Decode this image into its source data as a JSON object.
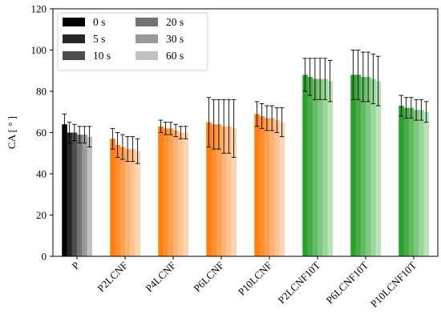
{
  "chart_data": {
    "type": "bar",
    "ylabel": "CA [ ° ]",
    "xlabel": "",
    "ylim": [
      0,
      120
    ],
    "yticks": [
      0,
      20,
      40,
      60,
      80,
      100,
      120
    ],
    "grid": false,
    "legend_position": "top-left",
    "categories": [
      "P",
      "P2LCNF",
      "P4LCNF",
      "P6LCNF",
      "P10LCNF",
      "P2LCNF10T",
      "P6LCNF10T",
      "P10LCNF10T"
    ],
    "series": [
      {
        "name": "0 s",
        "values": [
          64,
          57,
          63,
          65,
          69,
          88,
          88,
          73
        ],
        "errors": [
          5,
          5,
          3,
          12,
          6,
          8,
          12,
          5
        ]
      },
      {
        "name": "5 s",
        "values": [
          60,
          54,
          62,
          64,
          68,
          87,
          88,
          72
        ],
        "errors": [
          5,
          6,
          3,
          12,
          6,
          9,
          12,
          5
        ]
      },
      {
        "name": "10 s",
        "values": [
          60,
          53,
          62,
          64,
          67,
          86,
          87,
          72
        ],
        "errors": [
          4,
          6,
          3,
          12,
          6,
          10,
          12,
          5
        ]
      },
      {
        "name": "20 s",
        "values": [
          59,
          52,
          61,
          63,
          67,
          86,
          87,
          71
        ],
        "errors": [
          4,
          6,
          3,
          13,
          6,
          10,
          12,
          5
        ]
      },
      {
        "name": "30 s",
        "values": [
          59,
          52,
          60,
          63,
          66,
          86,
          86,
          71
        ],
        "errors": [
          4,
          6,
          3,
          13,
          6,
          10,
          12,
          5
        ]
      },
      {
        "name": "60 s",
        "values": [
          58,
          51,
          60,
          62,
          65,
          85,
          85,
          70
        ],
        "errors": [
          5,
          6,
          3,
          14,
          7,
          10,
          12,
          5
        ]
      }
    ],
    "group_colors": {
      "gray": [
        "#000000",
        "#262626",
        "#4d4d4d",
        "#737373",
        "#999999",
        "#c2c2c2"
      ],
      "orange": [
        "#ff7f0e",
        "#ff8f2e",
        "#ffa050",
        "#ffb271",
        "#ffc393",
        "#ffd4b3"
      ],
      "green": [
        "#2ca02c",
        "#45ad45",
        "#61bb61",
        "#7ec97e",
        "#9bd69b",
        "#b8e3b8"
      ]
    },
    "category_color_groups": [
      "gray",
      "orange",
      "orange",
      "orange",
      "orange",
      "green",
      "green",
      "green"
    ]
  }
}
